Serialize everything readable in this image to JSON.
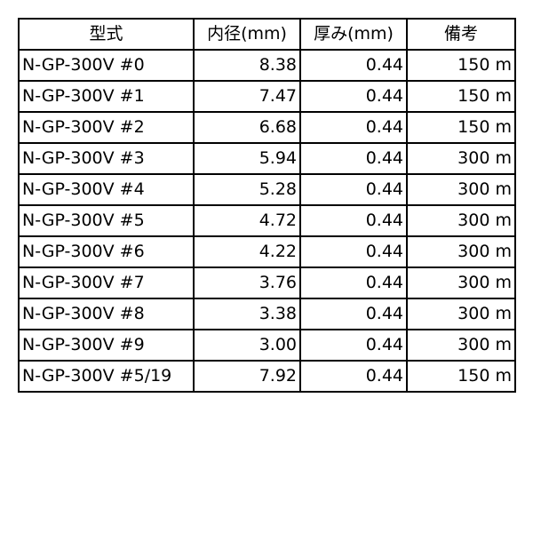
{
  "table": {
    "headers": [
      "型式",
      "内径(mm)",
      "厚み(mm)",
      "備考"
    ],
    "rows": [
      [
        "N-GP-300V #0",
        "8.38",
        "0.44",
        "150 m"
      ],
      [
        "N-GP-300V #1",
        "7.47",
        "0.44",
        "150 m"
      ],
      [
        "N-GP-300V #2",
        "6.68",
        "0.44",
        "150 m"
      ],
      [
        "N-GP-300V #3",
        "5.94",
        "0.44",
        "300 m"
      ],
      [
        "N-GP-300V #4",
        "5.28",
        "0.44",
        "300 m"
      ],
      [
        "N-GP-300V #5",
        "4.72",
        "0.44",
        "300 m"
      ],
      [
        "N-GP-300V #6",
        "4.22",
        "0.44",
        "300 m"
      ],
      [
        "N-GP-300V #7",
        "3.76",
        "0.44",
        "300 m"
      ],
      [
        "N-GP-300V #8",
        "3.38",
        "0.44",
        "300 m"
      ],
      [
        "N-GP-300V #9",
        "3.00",
        "0.44",
        "300 m"
      ],
      [
        "N-GP-300V #5/19",
        "7.92",
        "0.44",
        "150 m"
      ]
    ]
  }
}
